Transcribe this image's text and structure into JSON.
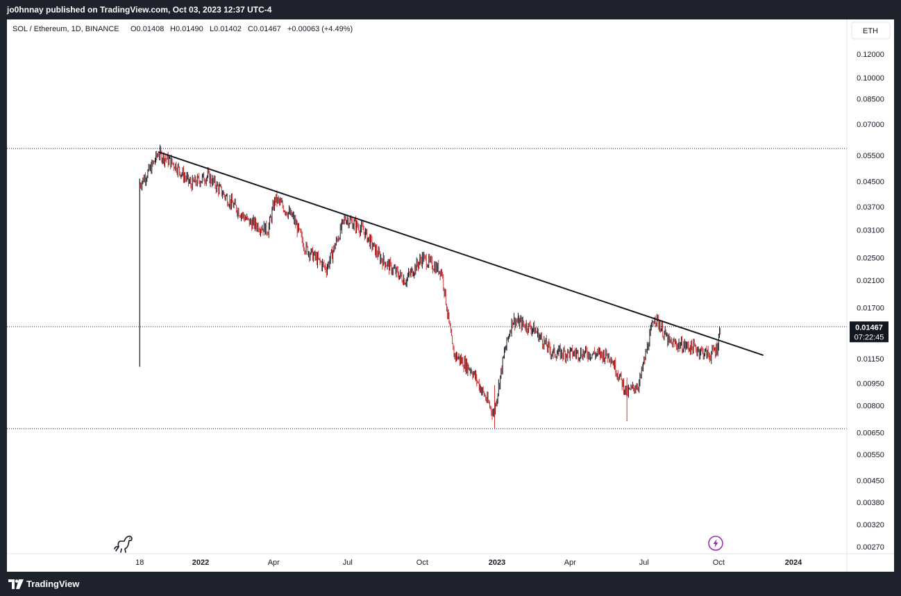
{
  "header": {
    "publish_line": "jo0hnnay published on TradingView.com, Oct 03, 2023 12:37 UTC-4"
  },
  "footer": {
    "brand": "TradingView"
  },
  "legend": {
    "symbol": "SOL / Ethereum, 1D, BINANCE",
    "open": "O0.01408",
    "high": "H0.01490",
    "low": "L0.01402",
    "close": "C0.01467",
    "change": "+0.00063 (+4.49%)"
  },
  "currency_button": "ETH",
  "last_price": {
    "value": "0.01467",
    "countdown": "07:22:45"
  },
  "colors": {
    "up": "#131722",
    "down": "#d32f2f",
    "price_label_bg": "#131722",
    "trendline": "#131722",
    "accent_icon": "#9c27b0"
  },
  "chart_data": {
    "type": "candlestick",
    "scale": "log",
    "y_ticks": [
      "0.12000",
      "0.10000",
      "0.08500",
      "0.07000",
      "0.05500",
      "0.04500",
      "0.03700",
      "0.03100",
      "0.02500",
      "0.02100",
      "0.01700",
      "0.01150",
      "0.00950",
      "0.00800",
      "0.00650",
      "0.00550",
      "0.00450",
      "0.00380",
      "0.00320",
      "0.00270"
    ],
    "x_ticks": [
      {
        "label": "18",
        "date": "2021-10-18",
        "bold": false
      },
      {
        "label": "2022",
        "date": "2022-01-01",
        "bold": true
      },
      {
        "label": "Apr",
        "date": "2022-04-01",
        "bold": false
      },
      {
        "label": "Jul",
        "date": "2022-07-01",
        "bold": false
      },
      {
        "label": "Oct",
        "date": "2022-10-01",
        "bold": false
      },
      {
        "label": "2023",
        "date": "2023-01-01",
        "bold": true
      },
      {
        "label": "Apr",
        "date": "2023-04-01",
        "bold": false
      },
      {
        "label": "Jul",
        "date": "2023-07-01",
        "bold": false
      },
      {
        "label": "Oct",
        "date": "2023-10-01",
        "bold": false
      },
      {
        "label": "2024",
        "date": "2024-01-01",
        "bold": true
      }
    ],
    "price_path": [
      {
        "date": "2021-10-18",
        "price": 0.044
      },
      {
        "date": "2021-11-01",
        "price": 0.05
      },
      {
        "date": "2021-11-10",
        "price": 0.056
      },
      {
        "date": "2021-12-01",
        "price": 0.051
      },
      {
        "date": "2021-12-20",
        "price": 0.044
      },
      {
        "date": "2022-01-10",
        "price": 0.047
      },
      {
        "date": "2022-02-01",
        "price": 0.04
      },
      {
        "date": "2022-03-01",
        "price": 0.033
      },
      {
        "date": "2022-03-25",
        "price": 0.031
      },
      {
        "date": "2022-04-03",
        "price": 0.0395
      },
      {
        "date": "2022-04-25",
        "price": 0.034
      },
      {
        "date": "2022-05-10",
        "price": 0.027
      },
      {
        "date": "2022-06-05",
        "price": 0.023
      },
      {
        "date": "2022-06-28",
        "price": 0.034
      },
      {
        "date": "2022-07-20",
        "price": 0.031
      },
      {
        "date": "2022-08-10",
        "price": 0.025
      },
      {
        "date": "2022-09-10",
        "price": 0.021
      },
      {
        "date": "2022-10-01",
        "price": 0.025
      },
      {
        "date": "2022-10-25",
        "price": 0.0225
      },
      {
        "date": "2022-11-08",
        "price": 0.012
      },
      {
        "date": "2022-12-01",
        "price": 0.0105
      },
      {
        "date": "2022-12-28",
        "price": 0.0075
      },
      {
        "date": "2023-01-10",
        "price": 0.012
      },
      {
        "date": "2023-01-20",
        "price": 0.0155
      },
      {
        "date": "2023-02-15",
        "price": 0.0145
      },
      {
        "date": "2023-03-10",
        "price": 0.012
      },
      {
        "date": "2023-04-20",
        "price": 0.012
      },
      {
        "date": "2023-05-20",
        "price": 0.0118
      },
      {
        "date": "2023-06-10",
        "price": 0.0088
      },
      {
        "date": "2023-06-25",
        "price": 0.0095
      },
      {
        "date": "2023-07-14",
        "price": 0.016
      },
      {
        "date": "2023-08-01",
        "price": 0.013
      },
      {
        "date": "2023-09-01",
        "price": 0.0125
      },
      {
        "date": "2023-09-20",
        "price": 0.0118
      },
      {
        "date": "2023-09-29",
        "price": 0.0125
      },
      {
        "date": "2023-10-03",
        "price": 0.01467
      }
    ],
    "listing_wick": {
      "date": "2021-10-18",
      "low": 0.0108,
      "high": 0.046
    },
    "wicks": [
      {
        "date": "2022-12-29",
        "low": 0.0067
      },
      {
        "date": "2023-06-10",
        "low": 0.0071
      }
    ],
    "trendline": [
      {
        "date": "2021-11-10",
        "price": 0.0565
      },
      {
        "date": "2023-11-25",
        "price": 0.0118
      }
    ],
    "horizontal_lines": [
      0.058,
      0.0147,
      0.0067
    ]
  }
}
